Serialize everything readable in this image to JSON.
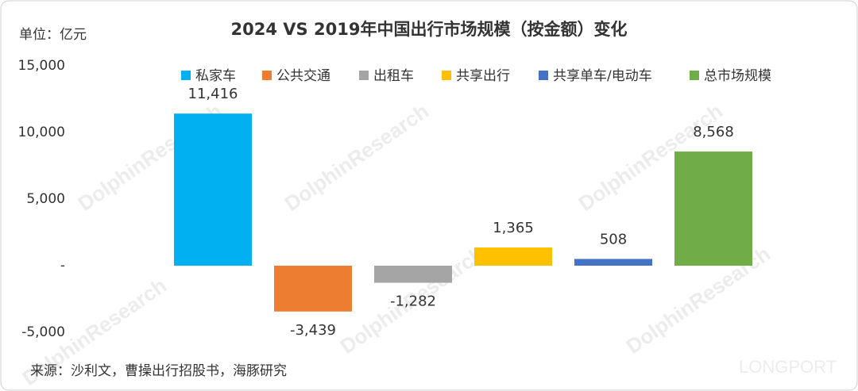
{
  "chart_data": {
    "type": "bar",
    "title": "2024 VS 2019年中国出行市场规模（按金额）变化",
    "unit_label": "单位：亿元",
    "source": "来源：沙利文，曹操出行招股书，海豚研究",
    "watermarks": [
      "DolphinResearch",
      "LONGPORT"
    ],
    "categories": [
      null
    ],
    "series": [
      {
        "name": "私家车",
        "color": "#00b0f0",
        "values": [
          11416
        ],
        "value_labels": [
          "11,416"
        ]
      },
      {
        "name": "公共交通",
        "color": "#ed7d31",
        "values": [
          -3439
        ],
        "value_labels": [
          "-3,439"
        ]
      },
      {
        "name": "出租车",
        "color": "#a5a5a5",
        "values": [
          -1282
        ],
        "value_labels": [
          "-1,282"
        ]
      },
      {
        "name": "共享出行",
        "color": "#ffc000",
        "values": [
          1365
        ],
        "value_labels": [
          "1,365"
        ]
      },
      {
        "name": "共享单车/电动车",
        "color": "#4472c4",
        "values": [
          508
        ],
        "value_labels": [
          "508"
        ]
      },
      {
        "name": "总市场规模",
        "color": "#70ad47",
        "values": [
          8568
        ],
        "value_labels": [
          "8,568"
        ]
      }
    ],
    "ylim": [
      -5000,
      15000
    ],
    "yticks": [
      {
        "value": -5000,
        "label": "-5,000"
      },
      {
        "value": 0,
        "label": "-"
      },
      {
        "value": 5000,
        "label": "5,000"
      },
      {
        "value": 10000,
        "label": "10,000"
      },
      {
        "value": 15000,
        "label": "15,000"
      }
    ],
    "grid": false,
    "legend": "top"
  }
}
